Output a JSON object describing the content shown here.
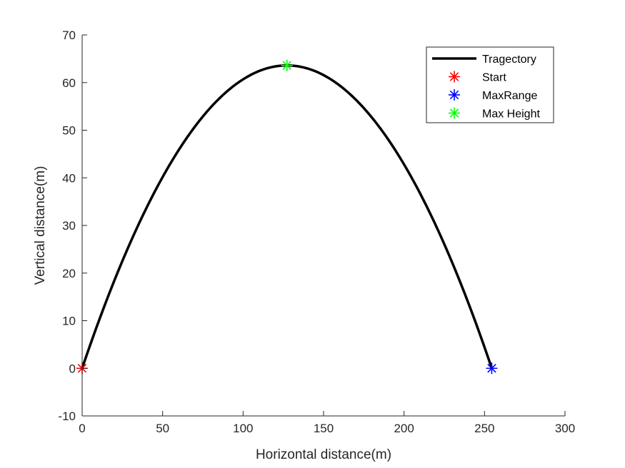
{
  "chart_data": {
    "type": "line",
    "title": "",
    "xlabel": "Horizontal distance(m)",
    "ylabel": "Vertical distance(m)",
    "xlim": [
      0,
      300
    ],
    "ylim": [
      -10,
      70
    ],
    "x_ticks": [
      0,
      50,
      100,
      150,
      200,
      250,
      300
    ],
    "y_ticks": [
      -10,
      0,
      10,
      20,
      30,
      40,
      50,
      60,
      70
    ],
    "grid": false,
    "legend_position": "top-right",
    "series": [
      {
        "name": "Tragectory",
        "style": "line",
        "color": "#000000",
        "range": 254.5,
        "max_height": 63.6,
        "x": [
          0,
          25,
          50,
          75,
          100,
          127.25,
          150,
          175,
          200,
          225,
          254.5
        ],
        "y": [
          0,
          22.9,
          41.0,
          54.5,
          62.0,
          63.6,
          62.0,
          54.5,
          41.0,
          22.9,
          0
        ]
      },
      {
        "name": "Start",
        "style": "marker",
        "marker": "asterisk",
        "color": "#ff0000",
        "x": [
          0
        ],
        "y": [
          0
        ]
      },
      {
        "name": "MaxRange",
        "style": "marker",
        "marker": "asterisk",
        "color": "#0000ff",
        "x": [
          254.5
        ],
        "y": [
          0
        ]
      },
      {
        "name": "Max Height",
        "style": "marker",
        "marker": "asterisk",
        "color": "#00ff00",
        "x": [
          127.25
        ],
        "y": [
          63.6
        ]
      }
    ]
  }
}
